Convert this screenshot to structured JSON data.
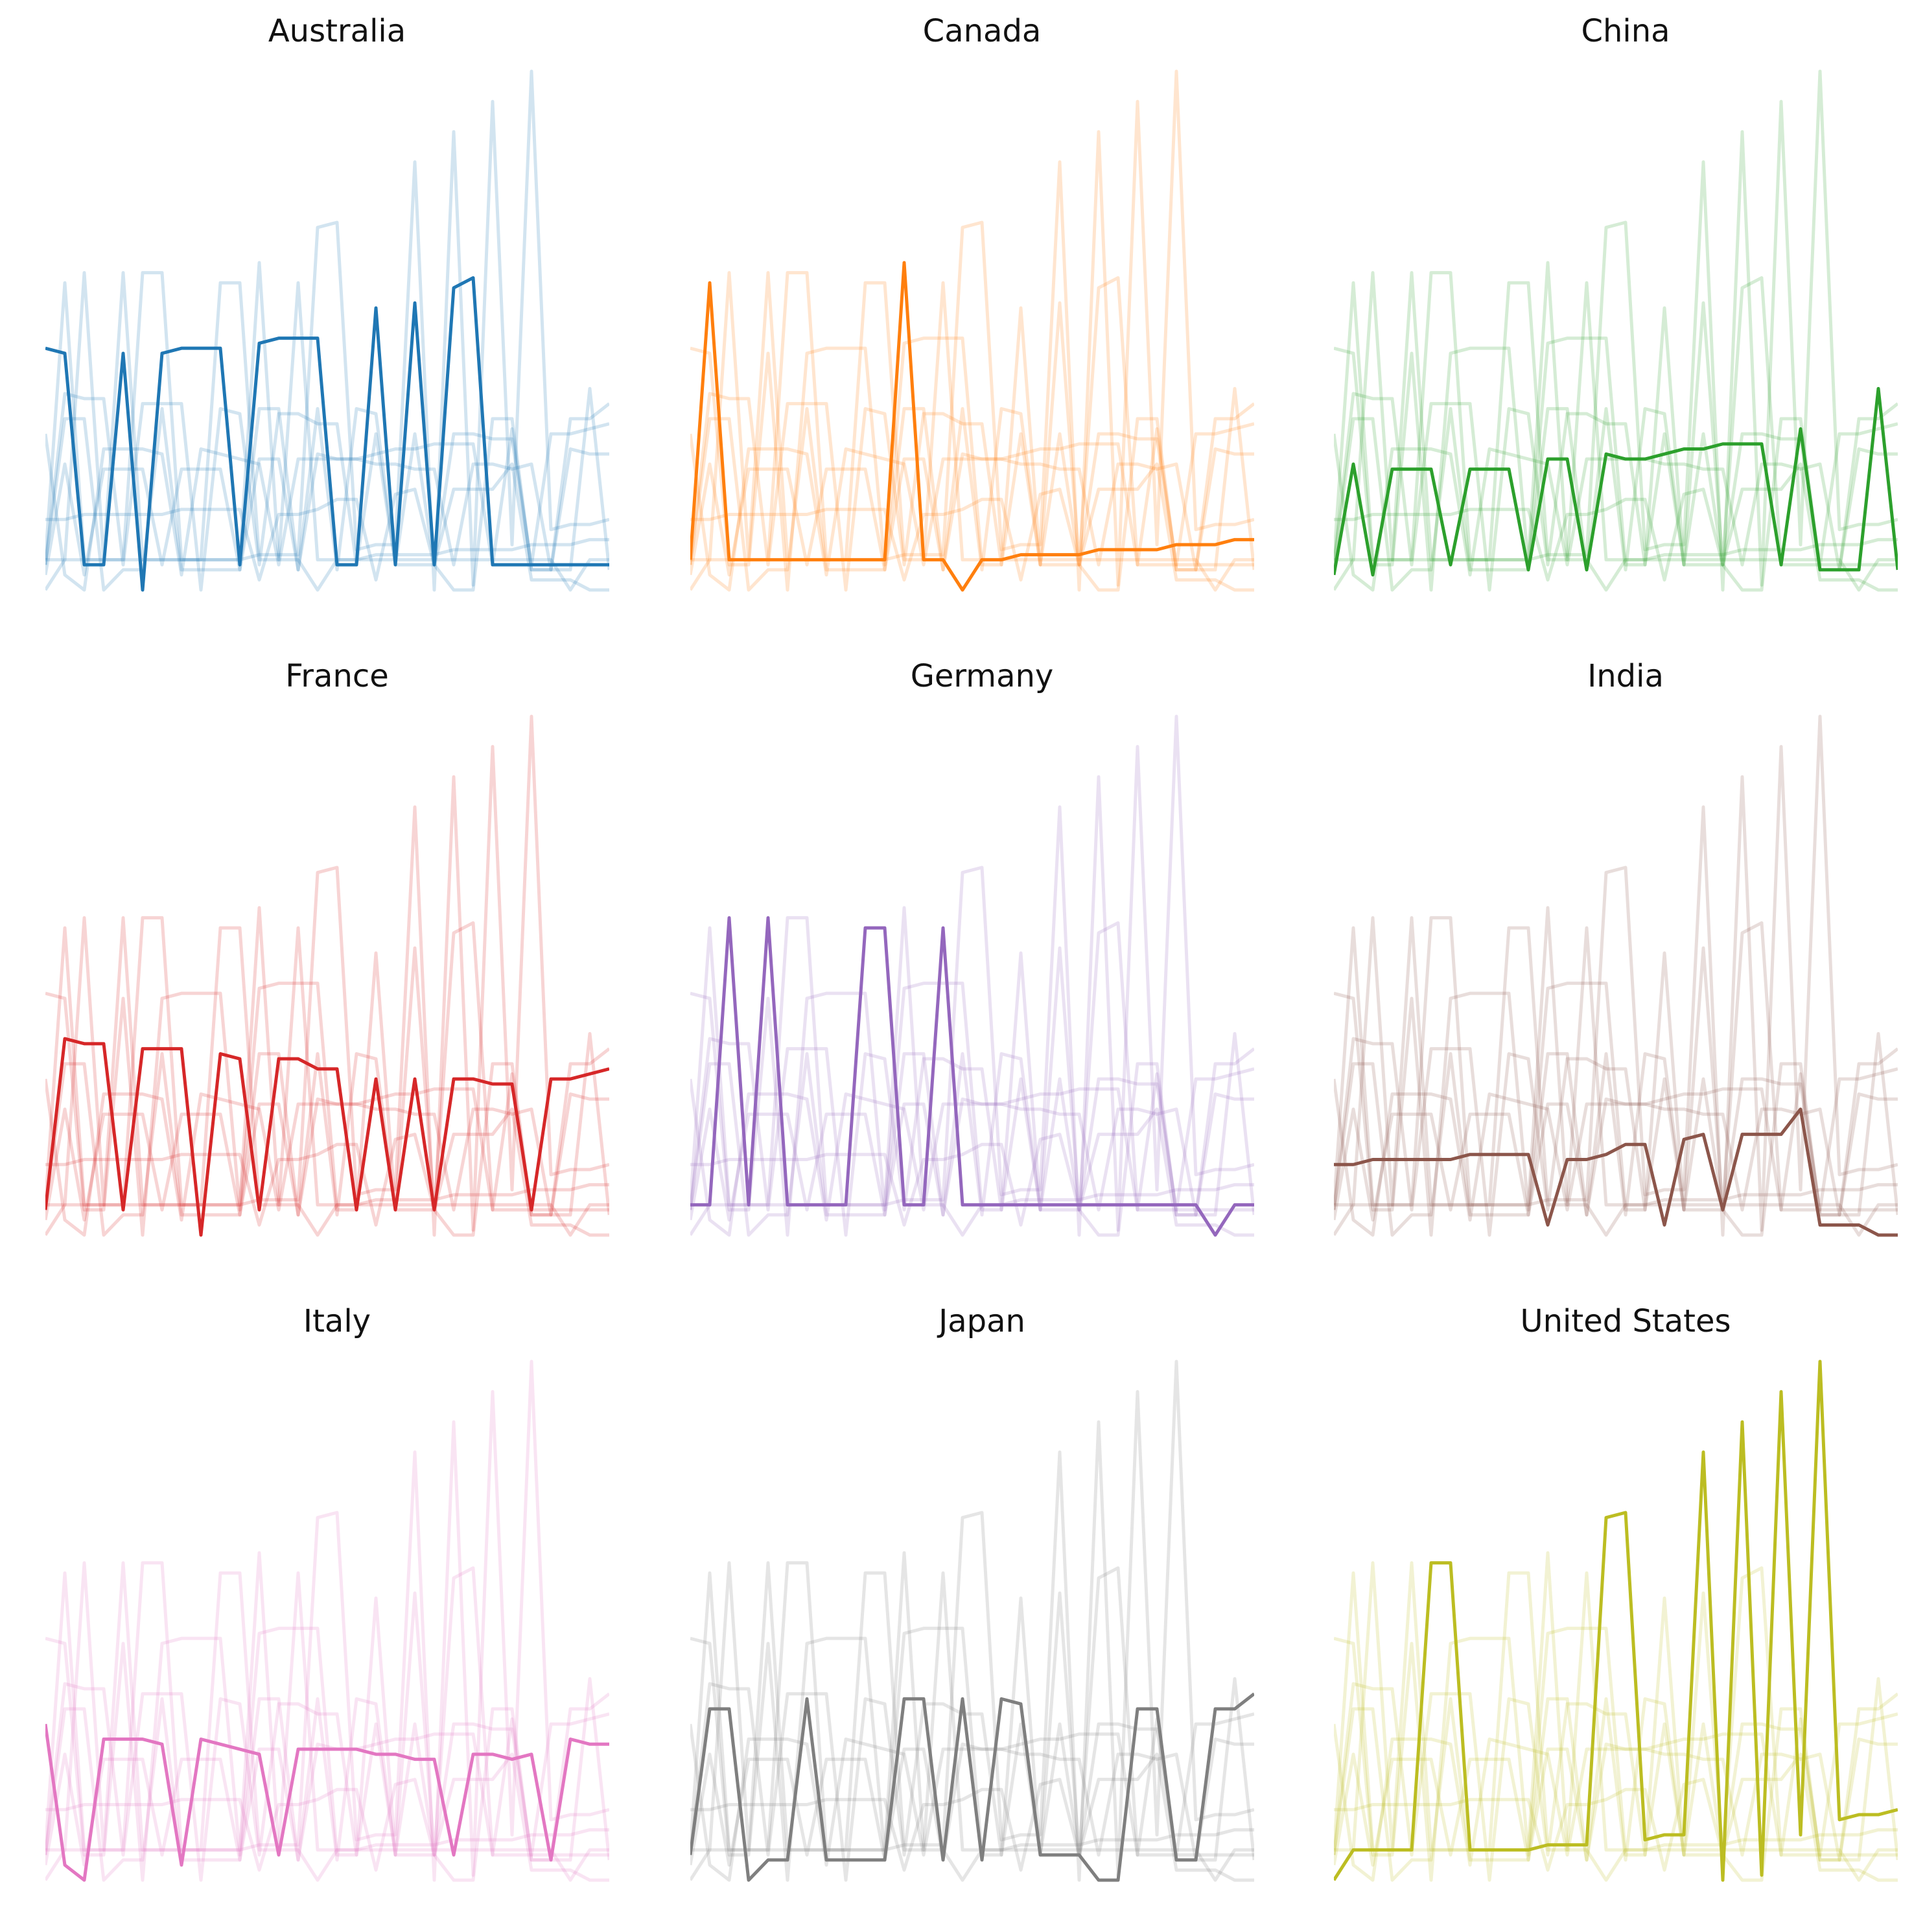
{
  "chart_data": {
    "type": "line",
    "layout": "3x3 small multiples; each panel highlights one country's series over faint copies of all other series",
    "axes": "hidden",
    "grid": false,
    "legend": "none",
    "x": [
      1,
      2,
      3,
      4,
      5,
      6,
      7,
      8,
      9,
      10,
      11,
      12,
      13,
      14,
      15,
      16,
      17,
      18,
      19,
      20,
      21,
      22,
      23,
      24,
      25,
      26,
      27,
      28,
      29,
      30
    ],
    "ylim": [
      0,
      100
    ],
    "series": [
      {
        "name": "Australia",
        "color": "#1f77b4",
        "values": [
          48,
          47,
          5,
          5,
          47,
          0,
          47,
          48,
          48,
          48,
          5,
          49,
          50,
          50,
          50,
          5,
          5,
          56,
          5,
          57,
          5,
          60,
          62,
          5,
          5,
          5,
          5,
          5,
          5,
          5
        ]
      },
      {
        "name": "Canada",
        "color": "#ff7f0e",
        "values": [
          6,
          61,
          6,
          6,
          6,
          6,
          6,
          6,
          6,
          6,
          6,
          65,
          6,
          6,
          0,
          6,
          6,
          7,
          7,
          7,
          7,
          8,
          8,
          8,
          8,
          9,
          9,
          9,
          10,
          10
        ]
      },
      {
        "name": "China",
        "color": "#2ca02c",
        "values": [
          3,
          25,
          3,
          24,
          24,
          24,
          5,
          24,
          24,
          24,
          4,
          26,
          26,
          4,
          27,
          26,
          26,
          27,
          28,
          28,
          29,
          29,
          29,
          5,
          32,
          4,
          4,
          4,
          40,
          4
        ]
      },
      {
        "name": "France",
        "color": "#d62728",
        "values": [
          5,
          39,
          38,
          38,
          5,
          37,
          37,
          37,
          0,
          36,
          35,
          5,
          35,
          35,
          33,
          33,
          5,
          31,
          5,
          31,
          5,
          31,
          31,
          30,
          30,
          5,
          31,
          31,
          32,
          33
        ]
      },
      {
        "name": "Germany",
        "color": "#9467bd",
        "values": [
          6,
          6,
          63,
          6,
          63,
          6,
          6,
          6,
          6,
          61,
          61,
          6,
          6,
          61,
          6,
          6,
          6,
          6,
          6,
          6,
          6,
          6,
          6,
          6,
          6,
          6,
          6,
          0,
          6,
          6
        ]
      },
      {
        "name": "India",
        "color": "#8c564b",
        "values": [
          14,
          14,
          15,
          15,
          15,
          15,
          15,
          16,
          16,
          16,
          16,
          2,
          15,
          15,
          16,
          18,
          18,
          2,
          19,
          20,
          5,
          20,
          20,
          20,
          25,
          2,
          2,
          2,
          0,
          0
        ]
      },
      {
        "name": "Italy",
        "color": "#e377c2",
        "values": [
          31,
          3,
          0,
          28,
          28,
          28,
          27,
          3,
          28,
          27,
          26,
          25,
          5,
          26,
          26,
          26,
          26,
          25,
          25,
          24,
          24,
          5,
          25,
          25,
          24,
          25,
          4,
          28,
          27,
          27
        ]
      },
      {
        "name": "Japan",
        "color": "#7f7f7f",
        "values": [
          5,
          34,
          34,
          0,
          4,
          4,
          36,
          4,
          4,
          4,
          4,
          36,
          36,
          4,
          36,
          4,
          36,
          35,
          5,
          5,
          5,
          0,
          0,
          34,
          34,
          4,
          4,
          34,
          34,
          37
        ]
      },
      {
        "name": "United States",
        "color": "#bcbd22",
        "values": [
          0,
          6,
          6,
          6,
          6,
          63,
          63,
          6,
          6,
          6,
          6,
          7,
          7,
          7,
          72,
          73,
          8,
          9,
          9,
          85,
          0,
          91,
          1,
          97,
          9,
          103,
          12,
          13,
          13,
          14
        ]
      }
    ]
  }
}
